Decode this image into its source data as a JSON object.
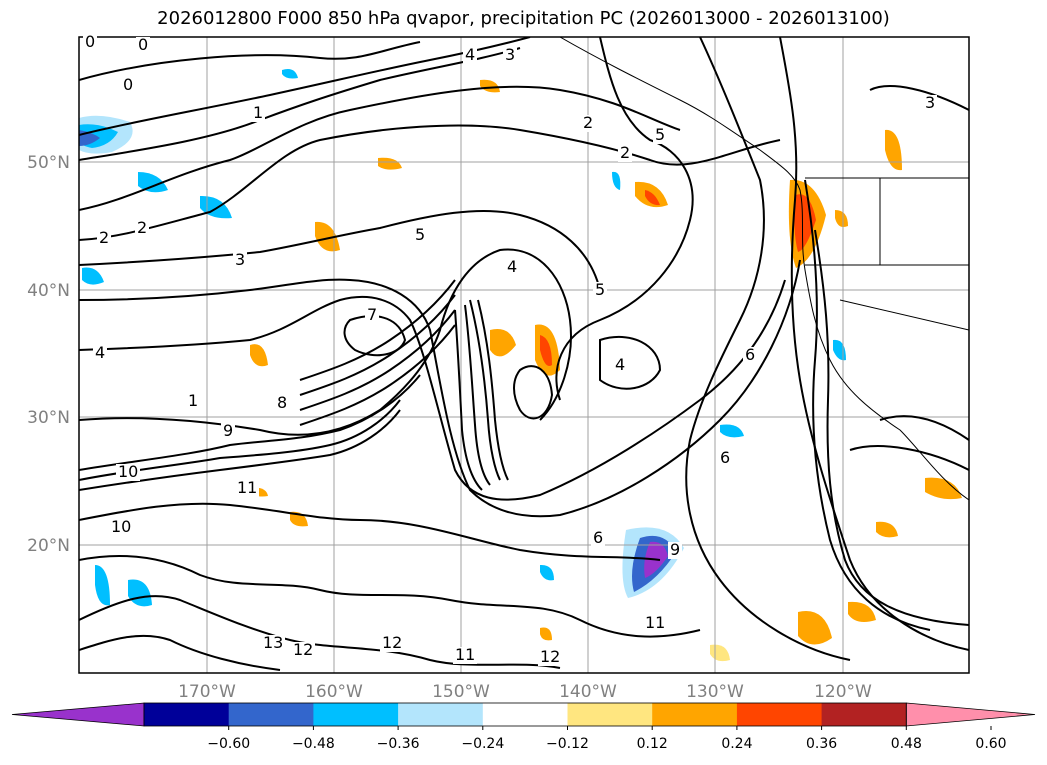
{
  "title": "2026012800 F000 850 hPa qvapor, precipitation PC (2026013000 - 2026013100)",
  "lat_labels": [
    "50°N",
    "40°N",
    "30°N",
    "20°N"
  ],
  "lon_labels": [
    "170°W",
    "160°W",
    "150°W",
    "140°W",
    "130°W",
    "120°W"
  ],
  "colorbar": {
    "colors": [
      "#9932cc",
      "#000099",
      "#3366cc",
      "#00bfff",
      "#b3e5fc",
      "#ffffff",
      "#ffe680",
      "#ffa500",
      "#ff4500",
      "#b22222",
      "#ff8fab"
    ],
    "ticks": [
      "−0.60",
      "−0.48",
      "−0.36",
      "−0.24",
      "−0.12",
      "0.12",
      "0.24",
      "0.36",
      "0.48",
      "0.60"
    ]
  },
  "contour_labels": [
    "0",
    "0",
    "0",
    "3",
    "3",
    "3",
    "4",
    "4",
    "4",
    "4",
    "5",
    "5",
    "5",
    "2",
    "2",
    "2",
    "2",
    "1",
    "1",
    "6",
    "6",
    "6",
    "7",
    "8",
    "9",
    "9",
    "10",
    "10",
    "11",
    "11",
    "11",
    "12",
    "12",
    "12",
    "13"
  ]
}
